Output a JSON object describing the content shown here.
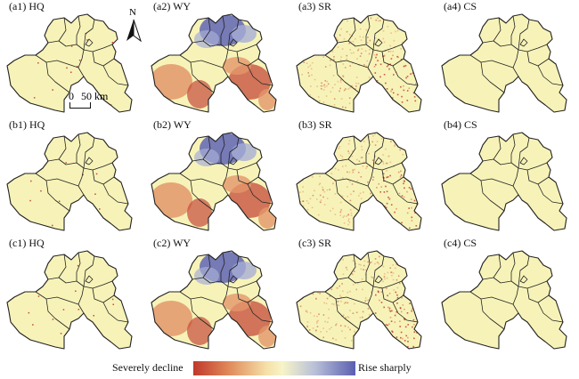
{
  "panels": [
    {
      "label": "(a1) HQ",
      "var": "HQ"
    },
    {
      "label": "(a2) WY",
      "var": "WY"
    },
    {
      "label": "(a3) SR",
      "var": "SR"
    },
    {
      "label": "(a4) CS",
      "var": "CS"
    },
    {
      "label": "(b1) HQ",
      "var": "HQ"
    },
    {
      "label": "(b2) WY",
      "var": "WY"
    },
    {
      "label": "(b3) SR",
      "var": "SR"
    },
    {
      "label": "(b4) CS",
      "var": "CS"
    },
    {
      "label": "(c1) HQ",
      "var": "HQ"
    },
    {
      "label": "(c2) WY",
      "var": "WY"
    },
    {
      "label": "(c3) SR",
      "var": "SR"
    },
    {
      "label": "(c4) CS",
      "var": "CS"
    }
  ],
  "north_arrow": {
    "label": "N"
  },
  "scale_bar": {
    "zero": "0",
    "distance": "50 km"
  },
  "legend": {
    "min_label": "Severely decline",
    "max_label": "Rise sharply",
    "colors": [
      "#c0392b",
      "#e08a5a",
      "#f5e0a8",
      "#f7f4c8",
      "#b8c0d8",
      "#5a5fb0"
    ]
  },
  "colors": {
    "stable": "#f7f3b8",
    "boundary": "#222222",
    "decline_strong": "#c44a3a",
    "decline_mid": "#e3966a",
    "rise_mid": "#a7aed6",
    "rise_strong": "#5f64b4"
  }
}
